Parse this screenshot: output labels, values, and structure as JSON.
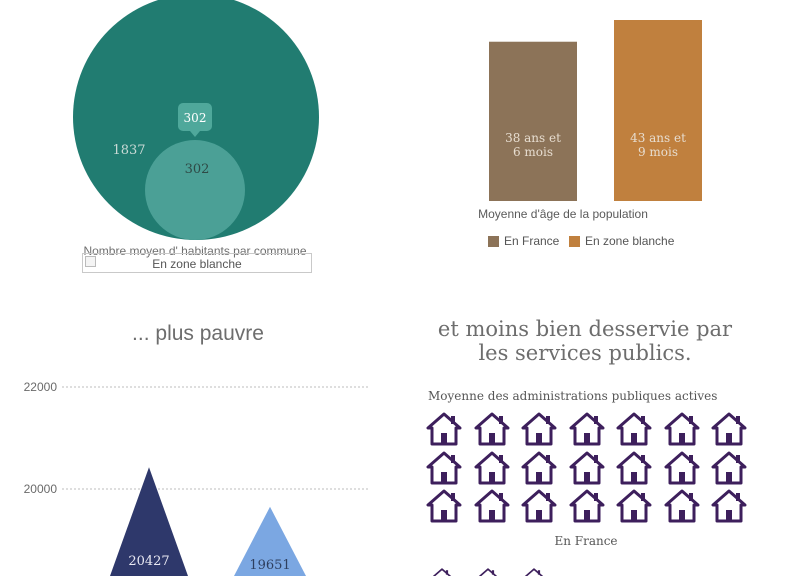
{
  "colors": {
    "big_circle": "#217c71",
    "small_circle": "#4ba096",
    "tooltip": "#4fa89b",
    "france_bar": "#8c7358",
    "zone_bar": "#c0803e",
    "tri_left": "#2e386b",
    "tri_right": "#7ba7e2",
    "house": "#3d1f5c"
  },
  "circles": {
    "caption": "Nombre moyen d' habitants par commune",
    "legend_image_alt": "En zone blanche",
    "icon": "broken-image-icon"
  },
  "age_chart": {
    "subtitle": "Moyenne d'âge de la population"
  },
  "headings": {
    "poor": "... plus pauvre",
    "services_line1": "et moins bien desservie par",
    "services_line2": "les services publics."
  },
  "services": {
    "caption": "Moyenne des administrations publiques actives",
    "group_label": "En France",
    "icon": "house-icon"
  },
  "chart_data": [
    {
      "type": "bubble",
      "title": "",
      "caption": "Nombre moyen d' habitants par commune",
      "series": [
        {
          "name": "En France",
          "value": 1837,
          "label": "1837"
        },
        {
          "name": "En zone blanche",
          "value": 302,
          "label": "302",
          "tooltip": "302"
        }
      ]
    },
    {
      "type": "bar",
      "subtitle": "Moyenne d'âge de la population",
      "categories": [
        "En France",
        "En zone blanche"
      ],
      "values": [
        38.5,
        43.75
      ],
      "data_labels": [
        [
          "38 ans et",
          "6 mois"
        ],
        [
          "43 ans et",
          "9 mois"
        ]
      ],
      "ylim": [
        0,
        45
      ],
      "legend": [
        "En France",
        "En zone blanche"
      ],
      "legend_position": "bottom"
    },
    {
      "type": "bar",
      "mark": "triangle",
      "title": "... plus pauvre",
      "values": [
        20427,
        19651
      ],
      "data_labels": [
        "20427",
        "19651"
      ],
      "yticks": [
        20000,
        22000
      ],
      "ylim": [
        17000,
        22500
      ],
      "grid": true
    },
    {
      "type": "pictograph",
      "title": "et moins bien desservie par les services publics.",
      "caption": "Moyenne des administrations publiques actives",
      "groups": [
        {
          "name": "En France",
          "count": 21
        }
      ]
    }
  ]
}
